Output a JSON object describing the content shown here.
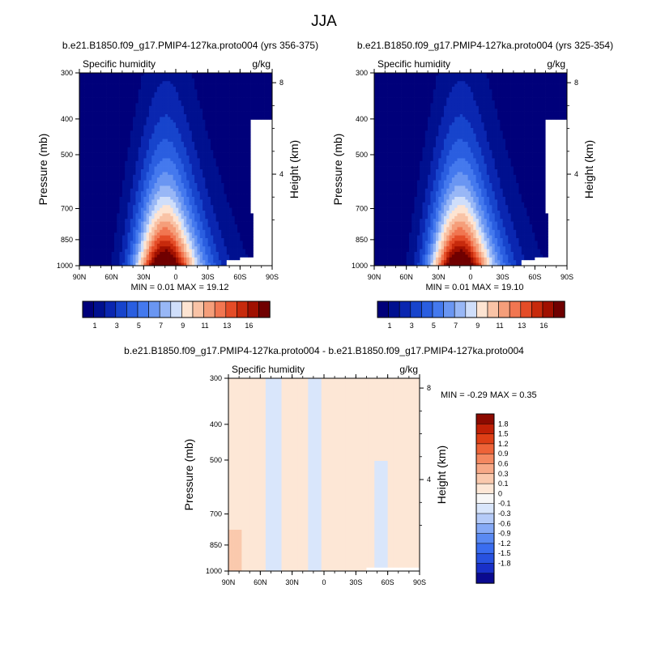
{
  "figure": {
    "title": "JJA"
  },
  "colors": {
    "blue_red_16": [
      "#00007a",
      "#00108f",
      "#0a26b0",
      "#1744cc",
      "#2a5ee0",
      "#4479ee",
      "#6a96f2",
      "#98b7f6",
      "#cfdefa",
      "#fde4d2",
      "#f9c3a6",
      "#f59e7a",
      "#f17651",
      "#e44c27",
      "#c72a0c",
      "#a01000",
      "#700000"
    ],
    "diff": [
      "#0a0a90",
      "#1930c8",
      "#2852e0",
      "#3a6df0",
      "#5a8af3",
      "#86aaf6",
      "#b5cbf8",
      "#d9e6fb",
      "#f7f7f7",
      "#fde7d6",
      "#fac9ad",
      "#f7a987",
      "#f48860",
      "#ee6338",
      "#de3f16",
      "#c02006",
      "#8c0a00"
    ]
  },
  "chart_data": [
    {
      "type": "heatmap",
      "name": "panel-left",
      "title": "b.e21.B1850.f09_g17.PMIP4-127ka.proto004 (yrs 356-375)",
      "left_label": "Specific humidity",
      "right_label": "g/kg",
      "ylabel": "Pressure (mb)",
      "ylabel_right": "Height (km)",
      "x_ticks": [
        "90N",
        "60N",
        "30N",
        "0",
        "30S",
        "60S",
        "90S"
      ],
      "y_ticks": [
        "300",
        "400",
        "500",
        "700",
        "850",
        "1000"
      ],
      "y_right_ticks": [
        "8",
        "4"
      ],
      "stats": {
        "min": "0.01",
        "max": "19.12"
      },
      "stats_label": "MIN =  0.01  MAX =  19.12",
      "colorbar_labels": [
        "1",
        "3",
        "5",
        "7",
        "9",
        "11",
        "13",
        "16"
      ],
      "peak": {
        "latitude": 10,
        "pressure": 1000,
        "value": 19.12
      }
    },
    {
      "type": "heatmap",
      "name": "panel-right",
      "title": "b.e21.B1850.f09_g17.PMIP4-127ka.proto004 (yrs 325-354)",
      "left_label": "Specific humidity",
      "right_label": "g/kg",
      "ylabel": "Pressure (mb)",
      "ylabel_right": "Height (km)",
      "x_ticks": [
        "90N",
        "60N",
        "30N",
        "0",
        "30S",
        "60S",
        "90S"
      ],
      "y_ticks": [
        "300",
        "400",
        "500",
        "700",
        "850",
        "1000"
      ],
      "y_right_ticks": [
        "8",
        "4"
      ],
      "stats": {
        "min": "0.01",
        "max": "19.10"
      },
      "stats_label": "MIN =  0.01  MAX =  19.10",
      "colorbar_labels": [
        "1",
        "3",
        "5",
        "7",
        "9",
        "11",
        "13",
        "16"
      ],
      "peak": {
        "latitude": 10,
        "pressure": 1000,
        "value": 19.1
      }
    },
    {
      "type": "heatmap",
      "name": "panel-diff",
      "title": "b.e21.B1850.f09_g17.PMIP4-127ka.proto004 - b.e21.B1850.f09_g17.PMIP4-127ka.proto004",
      "left_label": "Specific humidity",
      "right_label": "g/kg",
      "ylabel": "Pressure (mb)",
      "ylabel_right": "Height (km)",
      "x_ticks": [
        "90N",
        "60N",
        "30N",
        "0",
        "30S",
        "60S",
        "90S"
      ],
      "y_ticks": [
        "300",
        "400",
        "500",
        "700",
        "850",
        "1000"
      ],
      "y_right_ticks": [
        "8",
        "4"
      ],
      "stats": {
        "min": "-0.29",
        "max": "0.35"
      },
      "stats_label": "MIN =  -0.29  MAX =  0.35",
      "colorbar_labels": [
        "1.8",
        "1.5",
        "1.2",
        "0.9",
        "0.6",
        "0.3",
        "0.1",
        "0",
        "-0.1",
        "-0.3",
        "-0.6",
        "-0.9",
        "-1.2",
        "-1.5",
        "-1.8"
      ]
    }
  ]
}
